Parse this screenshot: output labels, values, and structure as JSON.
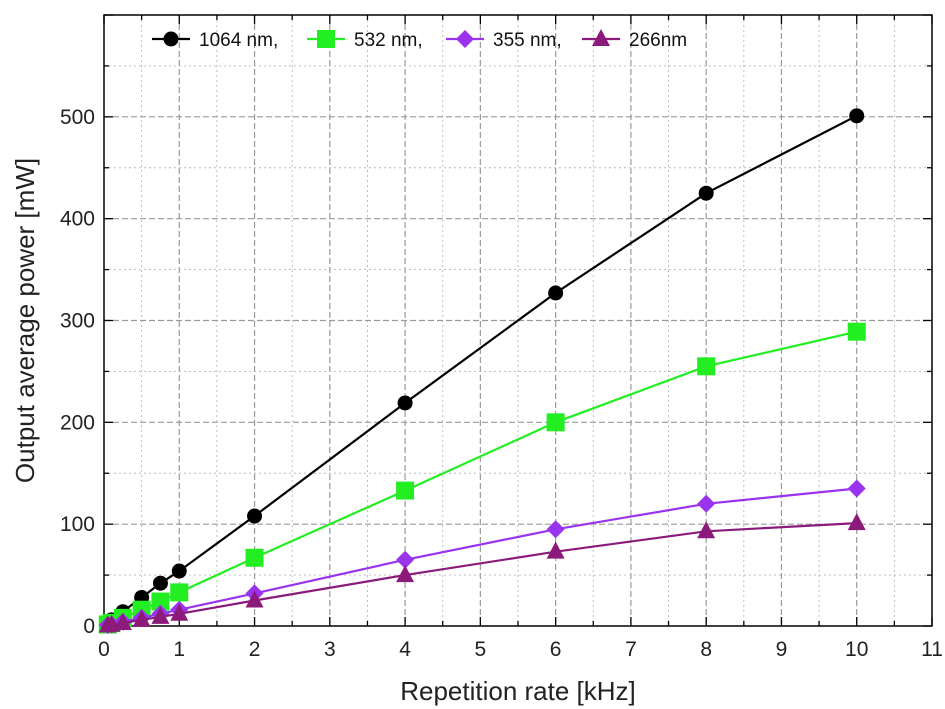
{
  "chart_data": {
    "type": "line",
    "xlabel": "Repetition rate [kHz]",
    "ylabel": "Output average power [mW]",
    "xlim": [
      0,
      11
    ],
    "ylim": [
      0,
      600
    ],
    "xticks": [
      0,
      1,
      2,
      3,
      4,
      5,
      6,
      7,
      8,
      9,
      10,
      11
    ],
    "yticks": [
      0,
      100,
      200,
      300,
      400,
      500
    ],
    "grid": true,
    "legend_position": "top",
    "x": [
      0.05,
      0.1,
      0.25,
      0.5,
      0.75,
      1,
      2,
      4,
      6,
      8,
      10
    ],
    "series": [
      {
        "name": "1064 nm,",
        "marker": "circle",
        "color": "#000000",
        "values": [
          3,
          6,
          14,
          28,
          42,
          54,
          108,
          219,
          327,
          425,
          501
        ]
      },
      {
        "name": "532 nm,",
        "marker": "square",
        "color": "#22ee22",
        "values": [
          1.5,
          3,
          8,
          16,
          24,
          33,
          67,
          133,
          200,
          255,
          289
        ]
      },
      {
        "name": "355 nm,",
        "marker": "diamond",
        "color": "#9933ee",
        "values": [
          0.8,
          1.5,
          4,
          8,
          12,
          16,
          32,
          65,
          95,
          120,
          135
        ]
      },
      {
        "name": "266nm",
        "marker": "triangle",
        "color": "#8b1a7a",
        "values": [
          0.6,
          1.2,
          3,
          6,
          9,
          12,
          25,
          50,
          73,
          93,
          101
        ]
      }
    ]
  }
}
